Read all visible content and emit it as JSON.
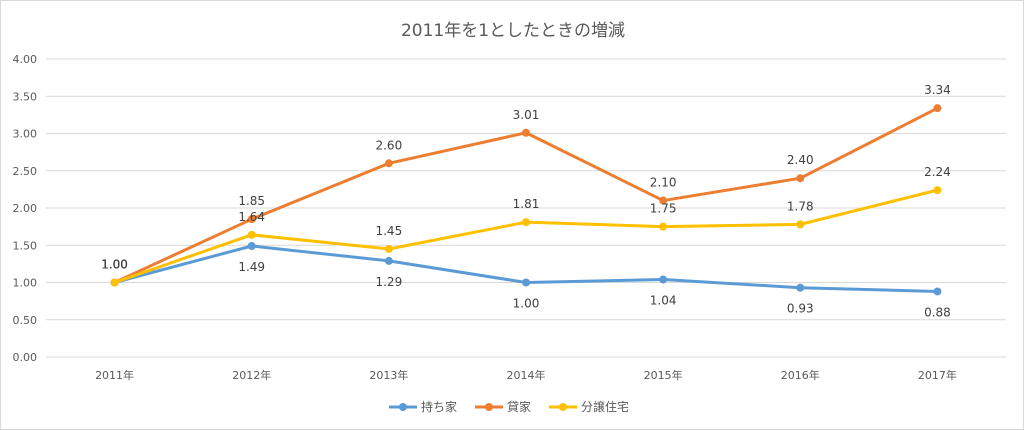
{
  "chart_data": {
    "type": "line",
    "title": "2011年を1としたときの増減",
    "categories": [
      "2011年",
      "2012年",
      "2013年",
      "2014年",
      "2015年",
      "2016年",
      "2017年"
    ],
    "y_ticks": [
      "0.00",
      "0.50",
      "1.00",
      "1.50",
      "2.00",
      "2.50",
      "3.00",
      "3.50",
      "4.00"
    ],
    "ylim": [
      0,
      4
    ],
    "grid": true,
    "legend_position": "bottom",
    "series": [
      {
        "name": "持ち家",
        "color": "#5B9BD5",
        "values": [
          1.0,
          1.49,
          1.29,
          1.0,
          1.04,
          0.93,
          0.88
        ],
        "labels": [
          "1.00",
          "1.49",
          "1.29",
          "1.00",
          "1.04",
          "0.93",
          "0.88"
        ]
      },
      {
        "name": "貸家",
        "color": "#ED7D31",
        "values": [
          1.0,
          1.85,
          2.6,
          3.01,
          2.1,
          2.4,
          3.34
        ],
        "labels": [
          "1.00",
          "1.85",
          "2.60",
          "3.01",
          "2.10",
          "2.40",
          "3.34"
        ]
      },
      {
        "name": "分譲住宅",
        "color": "#FFC000",
        "values": [
          1.0,
          1.64,
          1.45,
          1.81,
          1.75,
          1.78,
          2.24
        ],
        "labels": [
          "1.00",
          "1.64",
          "1.45",
          "1.81",
          "1.75",
          "1.78",
          "2.24"
        ]
      }
    ]
  }
}
